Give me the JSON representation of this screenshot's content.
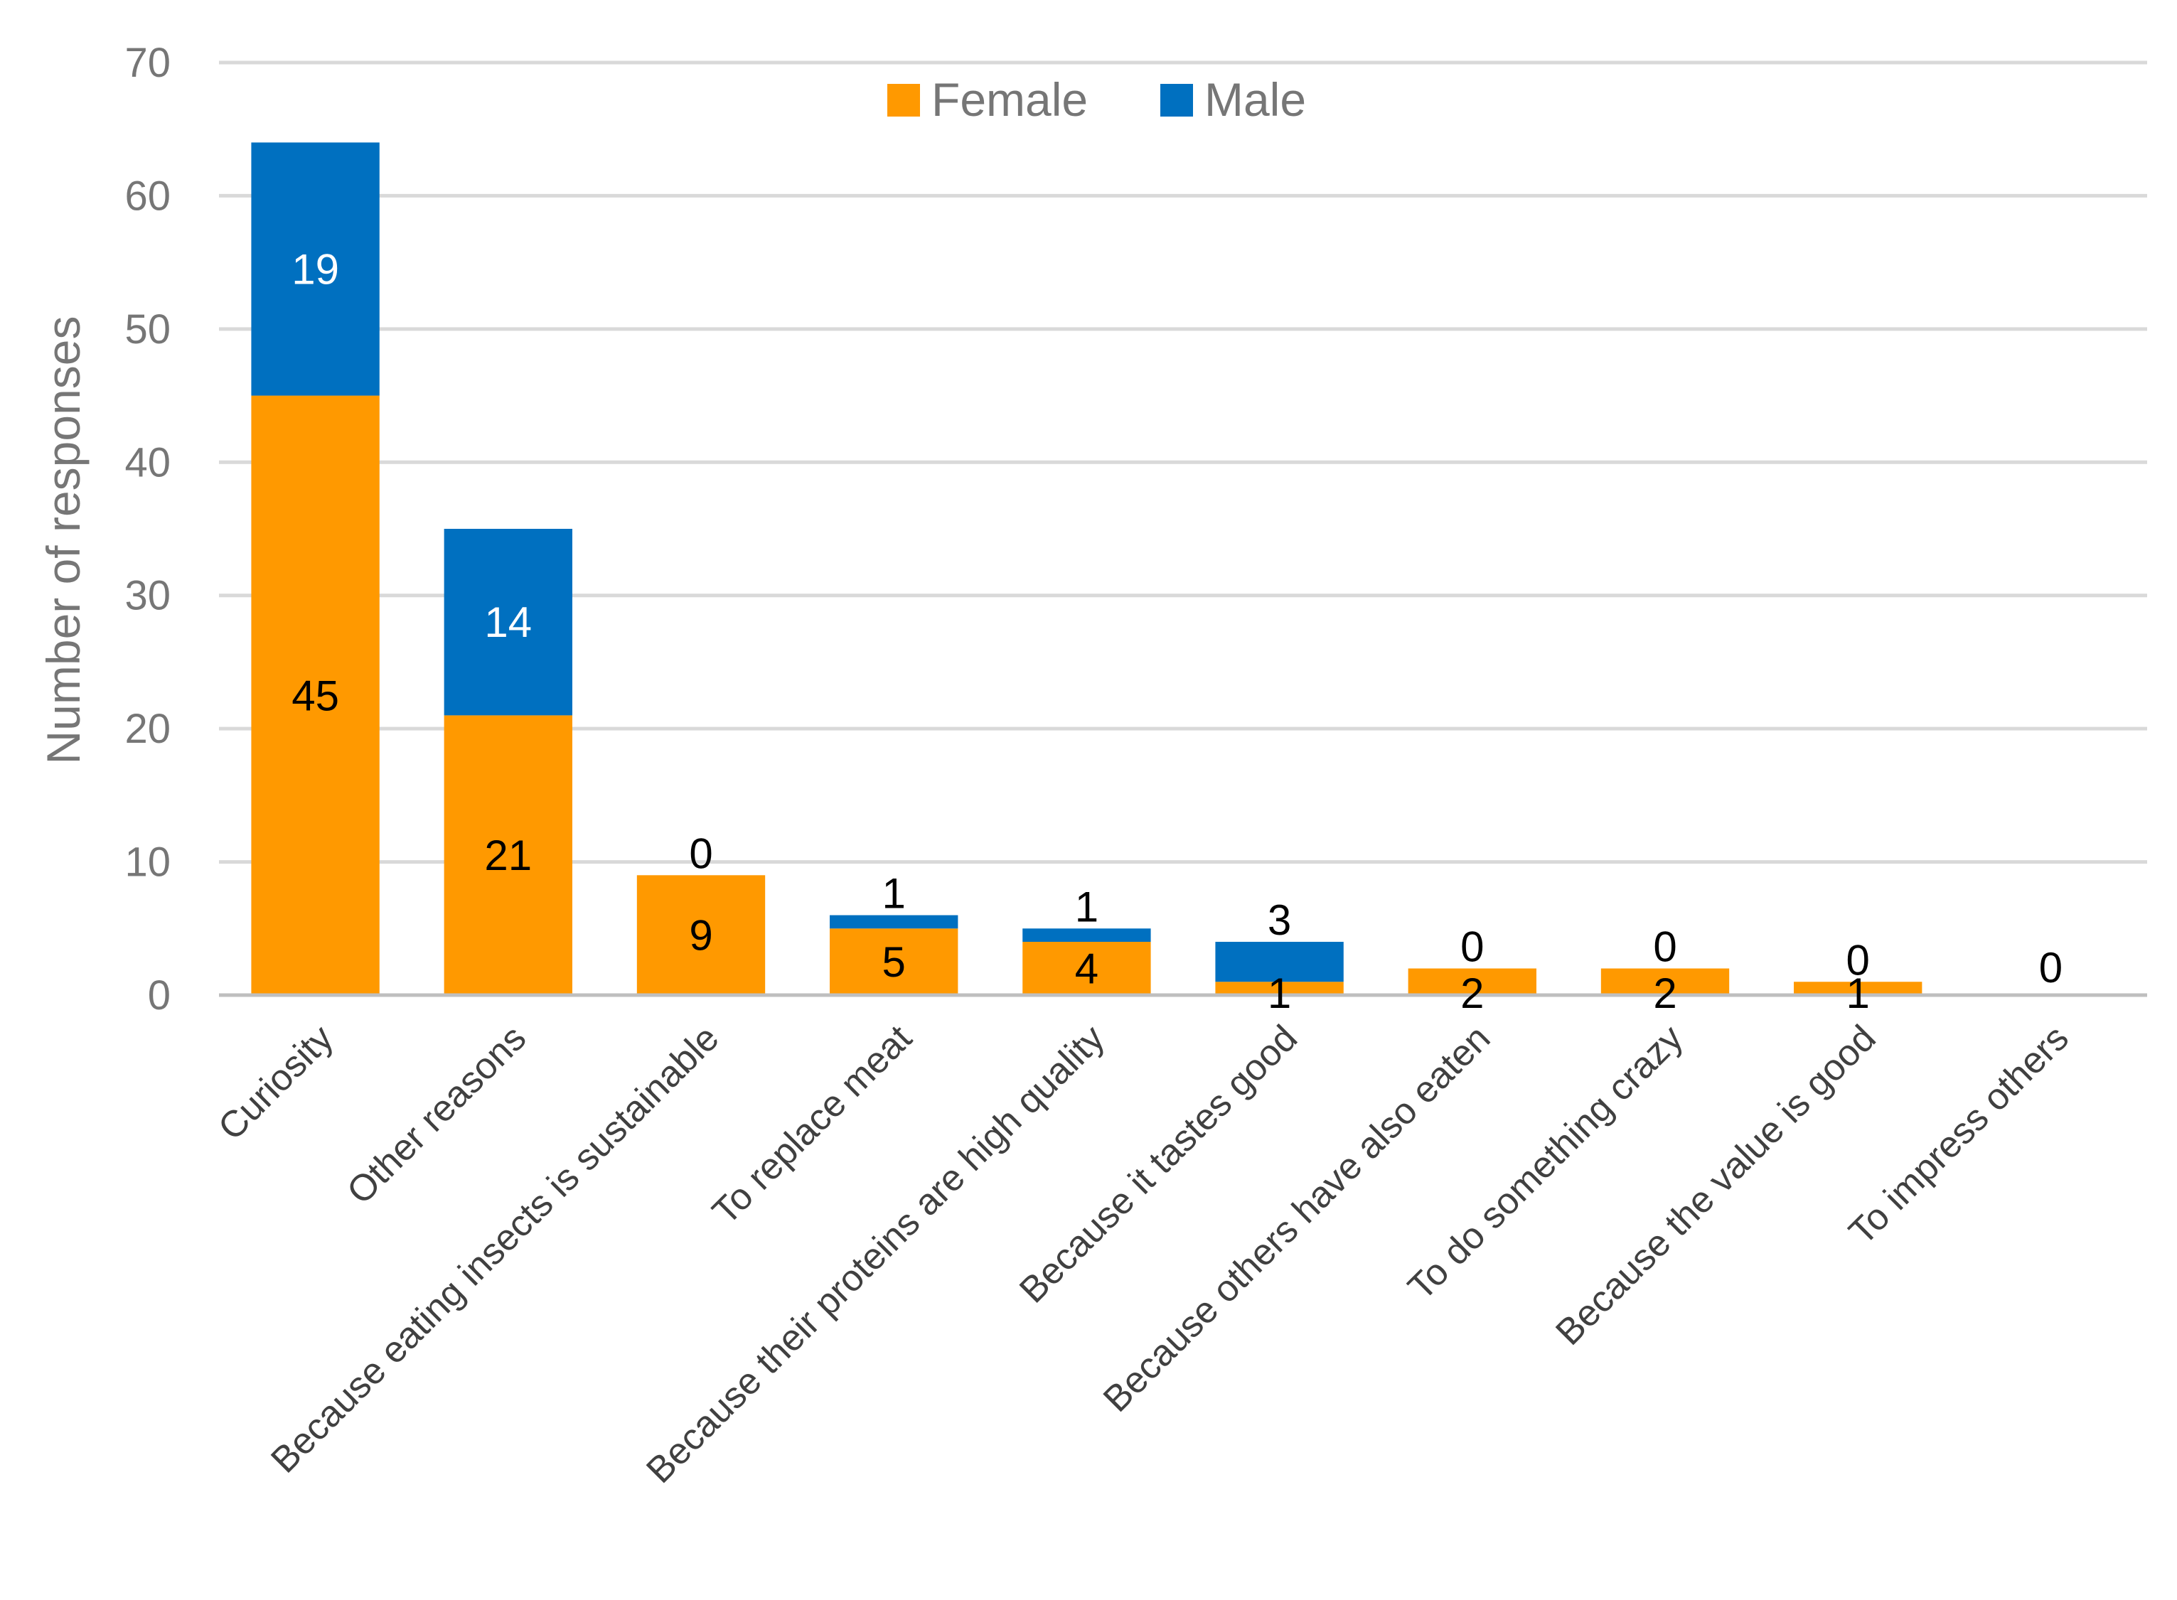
{
  "chart_data": {
    "type": "bar",
    "stacked": true,
    "title": "",
    "xlabel": "",
    "ylabel": "Number of responses",
    "ylim": [
      0,
      70
    ],
    "yticks": [
      0,
      10,
      20,
      30,
      40,
      50,
      60,
      70
    ],
    "grid": true,
    "legend_position": "top-center",
    "categories": [
      "Curiosity",
      "Other reasons",
      "Because eating insects is sustainable",
      "To replace meat",
      "Because their proteins are high quality",
      "Because it tastes good",
      "Because others have also eaten",
      "To do something crazy",
      "Because the value is good",
      "To impress others"
    ],
    "series": [
      {
        "name": "Female",
        "color": "#FF9900",
        "label_color": "#000000",
        "values": [
          45,
          21,
          9,
          5,
          4,
          1,
          2,
          2,
          1,
          0
        ]
      },
      {
        "name": "Male",
        "color": "#0070C0",
        "label_color": "#000000",
        "label_color_inside": "#ffffff",
        "values": [
          19,
          14,
          0,
          1,
          1,
          3,
          0,
          0,
          0,
          0
        ]
      }
    ]
  }
}
